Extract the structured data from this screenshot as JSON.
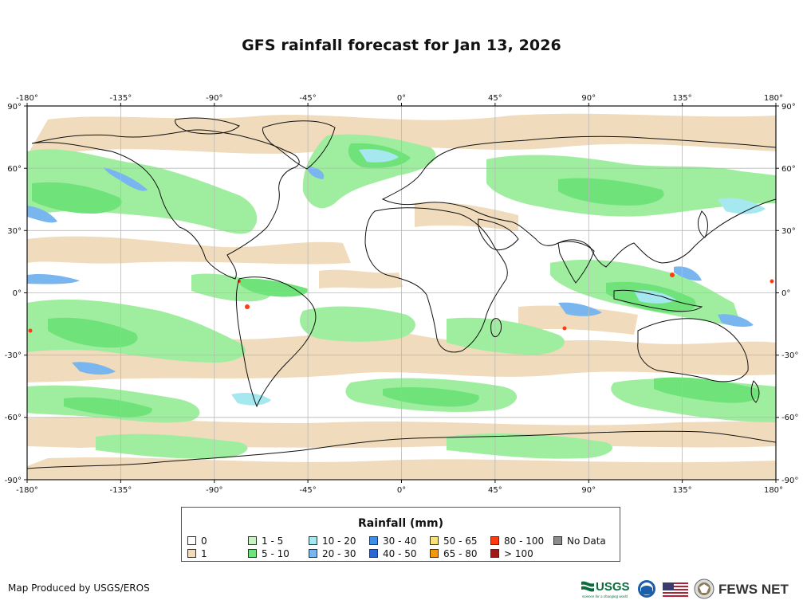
{
  "title": "GFS rainfall forecast for Jan 13, 2026",
  "map": {
    "lon_ticks": [
      "-180°",
      "-135°",
      "-90°",
      "-45°",
      "0°",
      "45°",
      "90°",
      "135°",
      "180°"
    ],
    "lat_ticks": [
      "90°",
      "60°",
      "30°",
      "0°",
      "-30°",
      "-60°",
      "-90°"
    ],
    "colors": {
      "ocean": "#ffffff",
      "r1": "#f0dcbc",
      "r5": "#9fee9f",
      "r10": "#6fe37a",
      "r20": "#a6e8f0",
      "r30": "#79b6ef",
      "r40": "#3c8ee8",
      "r50": "#2b66d6",
      "r80": "#ff3b0f",
      "r100": "#a01a18",
      "graticule": "#b8b8b8",
      "coast": "#111111"
    }
  },
  "legend": {
    "title": "Rainfall (mm)",
    "items": [
      {
        "label": "0",
        "color": "#ffffff"
      },
      {
        "label": "1",
        "color": "#f0dcbc"
      },
      {
        "label": "1 - 5",
        "color": "#c6f3c0"
      },
      {
        "label": "5 - 10",
        "color": "#6fe37a"
      },
      {
        "label": "10 - 20",
        "color": "#a6e8f0"
      },
      {
        "label": "20 - 30",
        "color": "#79b6ef"
      },
      {
        "label": "30 - 40",
        "color": "#3c8ee8"
      },
      {
        "label": "40 - 50",
        "color": "#2b66d6"
      },
      {
        "label": "50 - 65",
        "color": "#f8e27a"
      },
      {
        "label": "65 - 80",
        "color": "#f39a0c"
      },
      {
        "label": "80 - 100",
        "color": "#ff3b0f"
      },
      {
        "label": "> 100",
        "color": "#a01a18"
      },
      {
        "label": "No Data",
        "color": "#8c8c8c"
      }
    ]
  },
  "footer": {
    "credit": "Map Produced by USGS/EROS",
    "usgs": "USGS",
    "usgs_tagline": "science for a changing world",
    "fews": "FEWS NET"
  }
}
